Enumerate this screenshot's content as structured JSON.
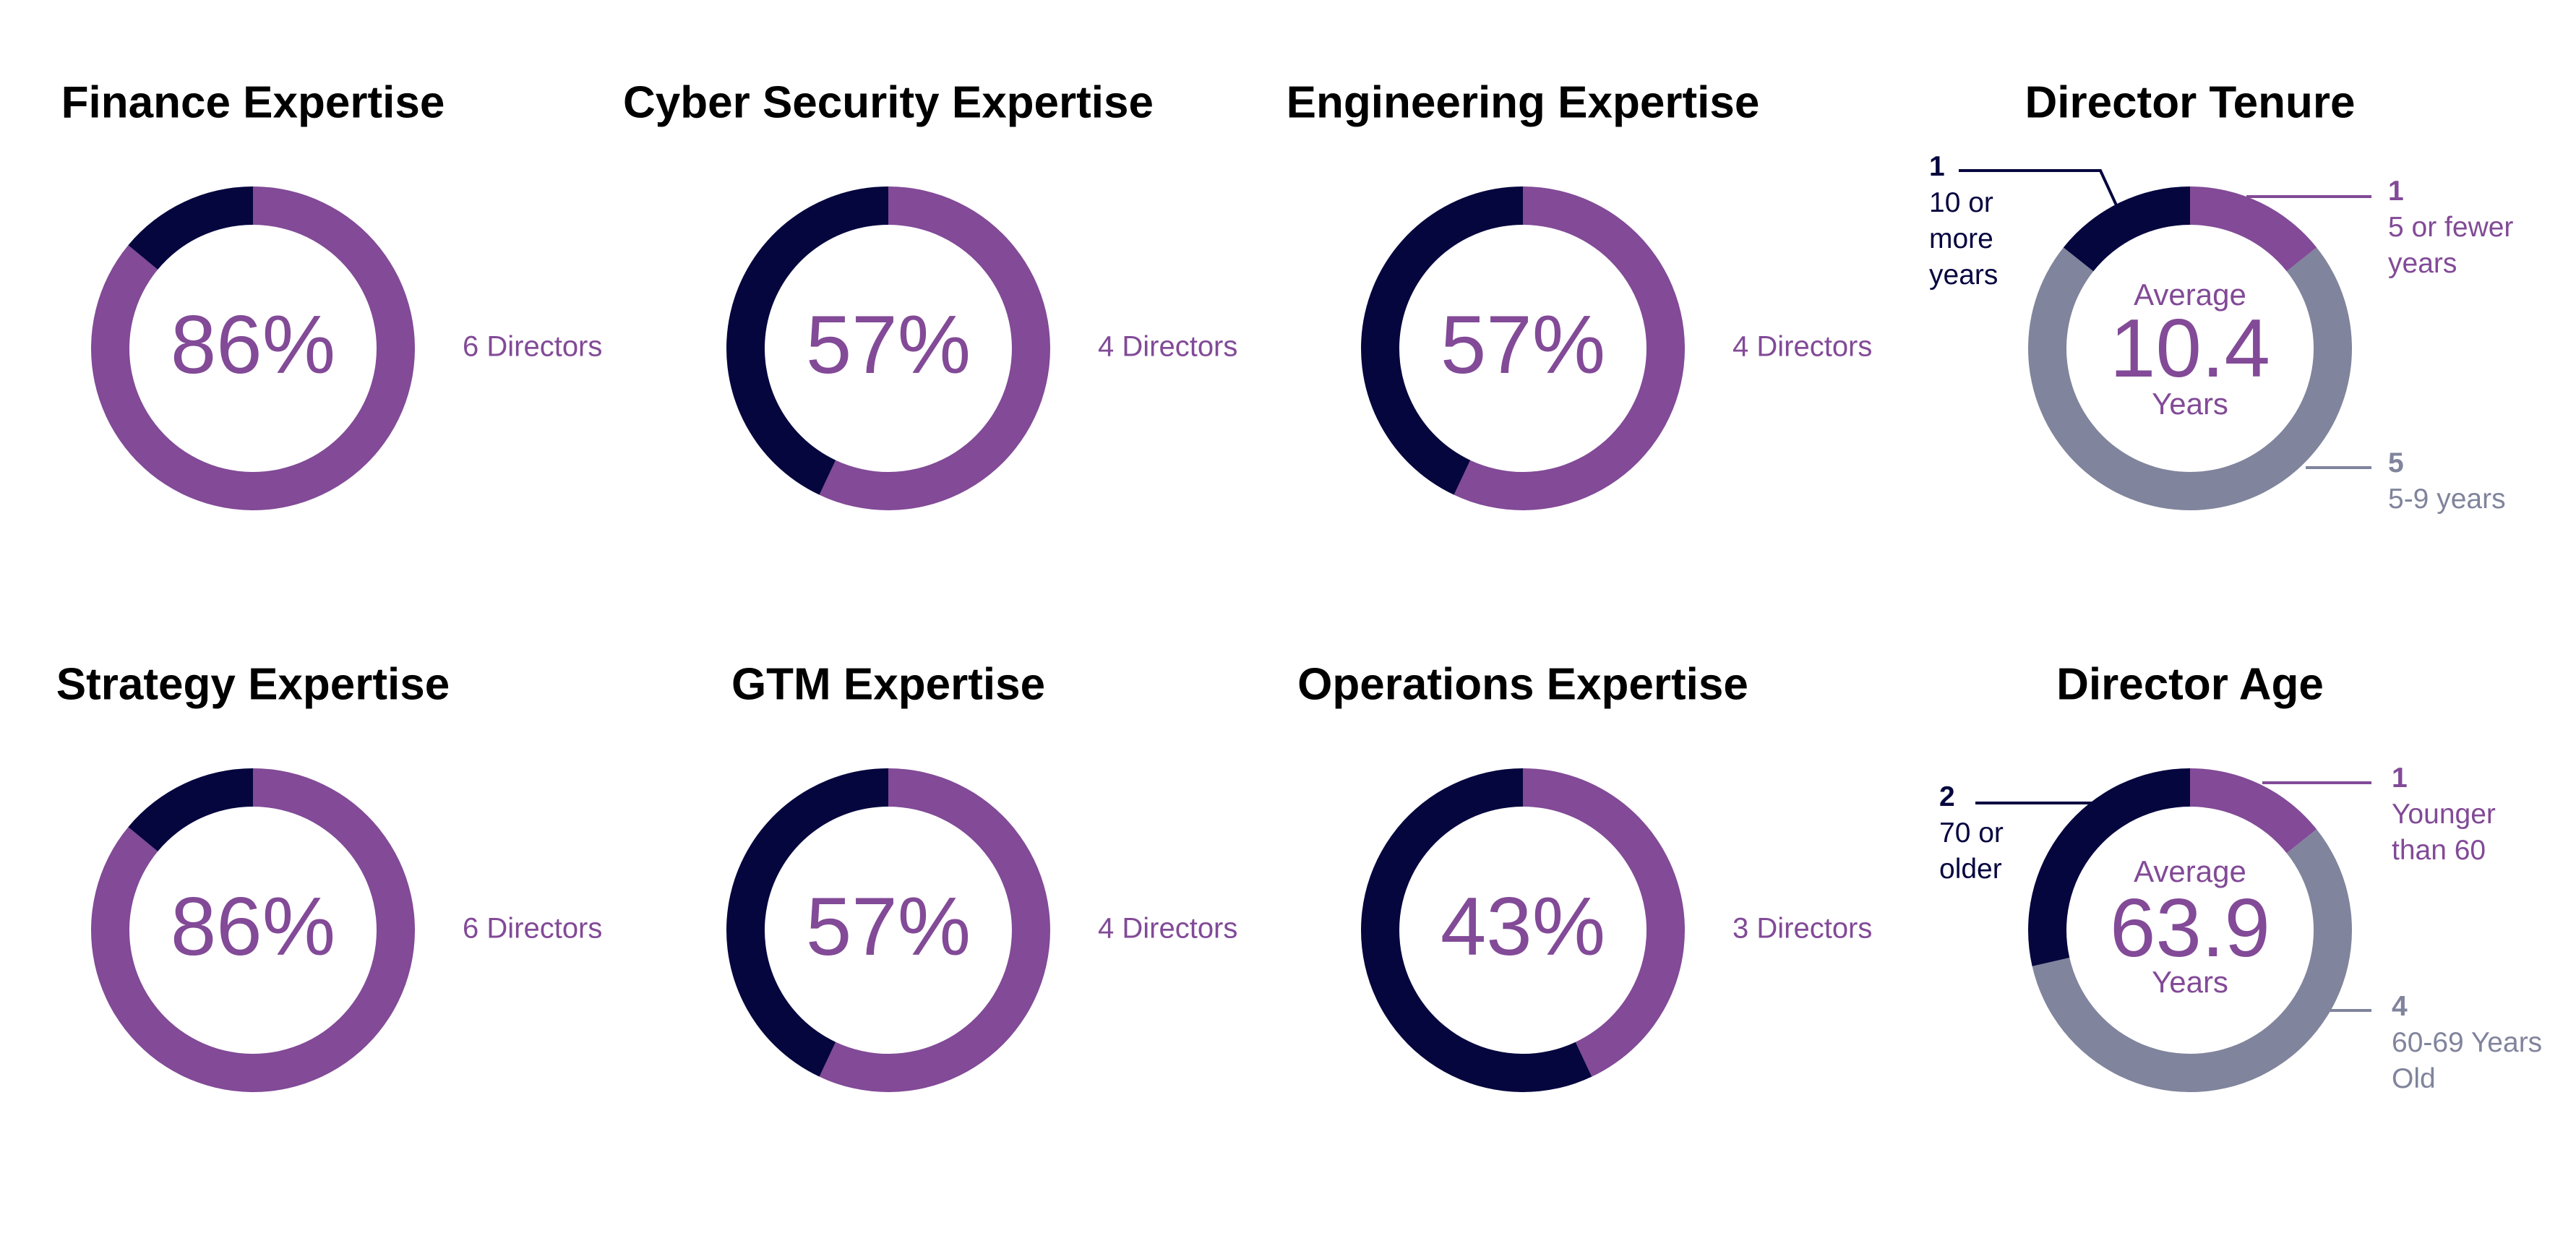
{
  "chart_data": [
    {
      "type": "donut",
      "title": "Finance Expertise",
      "values": [
        86,
        14
      ],
      "value_labels": [
        "86%",
        null
      ],
      "colors": [
        "#824a97",
        "#06063f"
      ],
      "side_label": "6 Directors"
    },
    {
      "type": "donut",
      "title": "Cyber Security Expertise",
      "values": [
        57,
        43
      ],
      "value_labels": [
        "57%",
        null
      ],
      "colors": [
        "#824a97",
        "#06063f"
      ],
      "side_label": "4 Directors"
    },
    {
      "type": "donut",
      "title": "Engineering Expertise",
      "values": [
        57,
        43
      ],
      "value_labels": [
        "57%",
        null
      ],
      "colors": [
        "#824a97",
        "#06063f"
      ],
      "side_label": "4 Directors"
    },
    {
      "type": "donut",
      "title": "Director Tenure",
      "categories": [
        "5 or fewer years",
        "5-9 years",
        "10 or more years"
      ],
      "values": [
        1,
        5,
        1
      ],
      "colors": [
        "#824a97",
        "#80849c",
        "#06063f"
      ],
      "center_title": "Average",
      "center_value": 10.4,
      "center_unit": "Years"
    },
    {
      "type": "donut",
      "title": "Strategy Expertise",
      "values": [
        86,
        14
      ],
      "value_labels": [
        "86%",
        null
      ],
      "colors": [
        "#824a97",
        "#06063f"
      ],
      "side_label": "6 Directors"
    },
    {
      "type": "donut",
      "title": "GTM Expertise",
      "values": [
        57,
        43
      ],
      "value_labels": [
        "57%",
        null
      ],
      "colors": [
        "#824a97",
        "#06063f"
      ],
      "side_label": "4 Directors"
    },
    {
      "type": "donut",
      "title": "Operations Expertise",
      "values": [
        43,
        57
      ],
      "value_labels": [
        "43%",
        null
      ],
      "colors": [
        "#824a97",
        "#06063f"
      ],
      "side_label": "3 Directors"
    },
    {
      "type": "donut",
      "title": "Director Age",
      "categories": [
        "Younger than 60",
        "60-69 Years Old",
        "70 or older"
      ],
      "values": [
        1,
        4,
        2
      ],
      "colors": [
        "#824a97",
        "#80849c",
        "#06063f"
      ],
      "center_title": "Average",
      "center_value": 63.9,
      "center_unit": "Years"
    }
  ]
}
